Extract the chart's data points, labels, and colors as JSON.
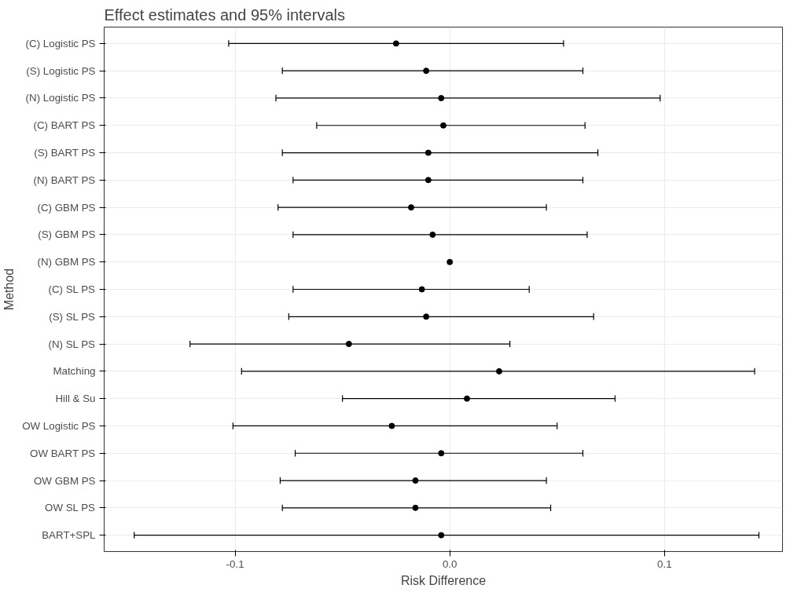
{
  "chart_data": {
    "type": "scatter",
    "orientation": "horizontal",
    "title": "Effect estimates and 95% intervals",
    "xlabel": "Risk Difference",
    "ylabel": "Method",
    "categories": [
      "(C) Logistic PS",
      "(S) Logistic PS",
      "(N) Logistic PS",
      "(C) BART PS",
      "(S) BART PS",
      "(N) BART PS",
      "(C) GBM PS",
      "(S) GBM PS",
      "(N) GBM PS",
      "(C) SL PS",
      "(S) SL PS",
      "(N) SL PS",
      "Matching",
      "Hill & Su",
      "OW Logistic PS",
      "OW BART PS",
      "OW GBM PS",
      "OW SL PS",
      "BART+SPL"
    ],
    "series": [
      {
        "color": "#000000",
        "values": [
          -0.025,
          -0.011,
          -0.004,
          -0.003,
          -0.01,
          -0.01,
          -0.018,
          -0.008,
          0.0,
          -0.013,
          -0.011,
          -0.047,
          0.023,
          0.008,
          -0.027,
          -0.004,
          -0.016,
          -0.016,
          -0.004
        ],
        "errors": [
          [
            -0.103,
            0.053
          ],
          [
            -0.078,
            0.062
          ],
          [
            -0.081,
            0.098
          ],
          [
            -0.062,
            0.063
          ],
          [
            -0.078,
            0.069
          ],
          [
            -0.073,
            0.062
          ],
          [
            -0.08,
            0.045
          ],
          [
            -0.073,
            0.064
          ],
          null,
          [
            -0.073,
            0.037
          ],
          [
            -0.075,
            0.067
          ],
          [
            -0.121,
            0.028
          ],
          [
            -0.097,
            0.142
          ],
          [
            -0.05,
            0.077
          ],
          [
            -0.101,
            0.05
          ],
          [
            -0.072,
            0.062
          ],
          [
            -0.079,
            0.045
          ],
          [
            -0.078,
            0.047
          ],
          [
            -0.147,
            0.144
          ]
        ]
      }
    ],
    "xlim": [
      -0.161,
      0.155
    ],
    "xticks": [
      {
        "value": -0.1,
        "label": "-0.1"
      },
      {
        "value": 0,
        "label": "0.0"
      },
      {
        "value": 0.1,
        "label": "0.1"
      }
    ],
    "grid": true,
    "marker": "circle"
  }
}
